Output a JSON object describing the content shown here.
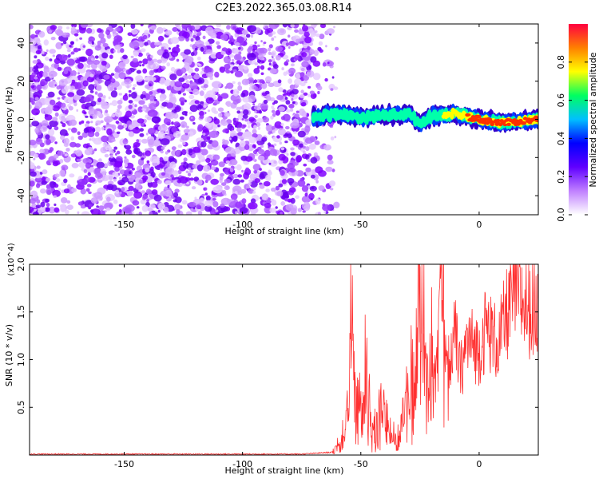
{
  "title": "C2E3.2022.365.03.08.R14",
  "chart_data": [
    {
      "type": "heatmap",
      "xlabel": "Height of straight line (km)",
      "ylabel": "Frequency (Hz)",
      "xlim": [
        -190,
        25
      ],
      "ylim": [
        -50,
        50
      ],
      "x_ticks": [
        -150,
        -100,
        -50,
        0
      ],
      "y_ticks": [
        -40,
        -20,
        0,
        20,
        40
      ],
      "colorbar": {
        "label": "Normalized spectral amplitude",
        "range": [
          0,
          1
        ],
        "ticks": [
          0.0,
          0.2,
          0.4,
          0.6,
          0.8
        ],
        "colors": [
          "#ffffff",
          "#c080ff",
          "#6000ff",
          "#0000ff",
          "#00c0ff",
          "#00ff60",
          "#ffff00",
          "#ff8000",
          "#ff0040"
        ]
      },
      "noise_region_x": [
        -190,
        -70
      ],
      "signal_track": [
        {
          "x": -70,
          "y": 1
        },
        {
          "x": -60,
          "y": 3
        },
        {
          "x": -50,
          "y": 1
        },
        {
          "x": -40,
          "y": 2
        },
        {
          "x": -30,
          "y": 3
        },
        {
          "x": -25,
          "y": -2
        },
        {
          "x": -20,
          "y": 2
        },
        {
          "x": -10,
          "y": 3
        },
        {
          "x": 0,
          "y": 0
        },
        {
          "x": 10,
          "y": -2
        },
        {
          "x": 25,
          "y": 0
        }
      ],
      "grid": false
    },
    {
      "type": "line",
      "xlabel": "Height of straight line (km)",
      "ylabel": "SNR (10 * v/v)",
      "y_multiplier": "(x10^4)",
      "xlim": [
        -190,
        25
      ],
      "ylim": [
        0,
        2.0
      ],
      "x_ticks": [
        -150,
        -100,
        -50,
        0
      ],
      "y_ticks": [
        0.5,
        1.0,
        1.5,
        2.0
      ],
      "y_tick_labels": [
        "0.5",
        "1.0",
        "1.5",
        "2.0"
      ],
      "series": [
        {
          "color": "#ff3030",
          "points": [
            [
              -190,
              0.01
            ],
            [
              -160,
              0.01
            ],
            [
              -130,
              0.01
            ],
            [
              -100,
              0.01
            ],
            [
              -75,
              0.01
            ],
            [
              -62,
              0.03
            ],
            [
              -58,
              0.15
            ],
            [
              -55,
              0.6
            ],
            [
              -54,
              1.45
            ],
            [
              -52,
              0.4
            ],
            [
              -48,
              0.8
            ],
            [
              -45,
              0.2
            ],
            [
              -40,
              0.5
            ],
            [
              -35,
              0.1
            ],
            [
              -30,
              0.6
            ],
            [
              -27,
              1.0
            ],
            [
              -25,
              1.6
            ],
            [
              -22,
              0.8
            ],
            [
              -18,
              1.2
            ],
            [
              -16,
              2.0
            ],
            [
              -14,
              0.9
            ],
            [
              -10,
              1.25
            ],
            [
              -8,
              0.85
            ],
            [
              -5,
              1.2
            ],
            [
              0,
              1.1
            ],
            [
              3,
              1.35
            ],
            [
              8,
              1.15
            ],
            [
              12,
              1.5
            ],
            [
              15,
              1.75
            ],
            [
              20,
              1.55
            ],
            [
              25,
              1.5
            ]
          ]
        }
      ],
      "grid": false
    }
  ]
}
